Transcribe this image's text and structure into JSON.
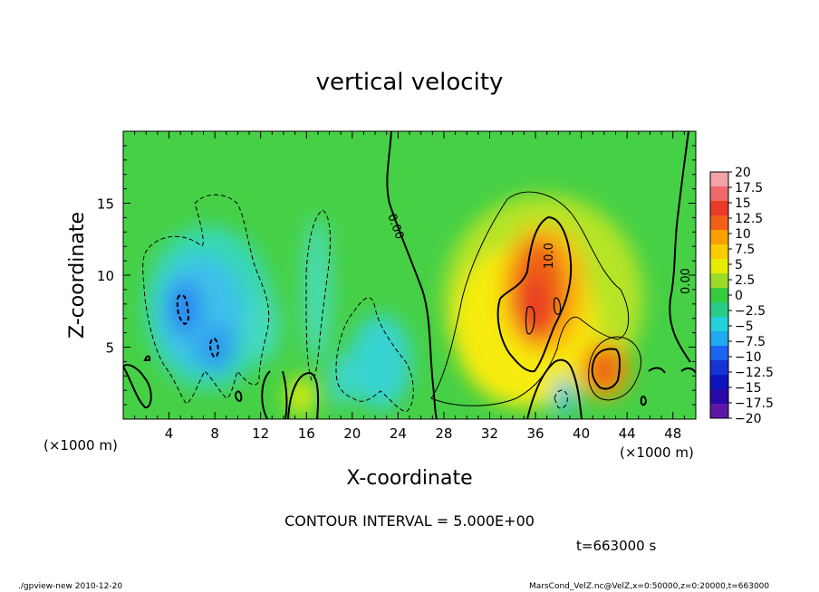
{
  "chart_data": {
    "type": "heatmap",
    "title": "vertical velocity",
    "xlabel": "X-coordinate",
    "ylabel": "Z-coordinate",
    "x_unit": "(×1000 m)",
    "y_unit": "(×1000 m)",
    "xlim": [
      0,
      50
    ],
    "ylim": [
      0,
      20
    ],
    "x_ticks": [
      4,
      8,
      12,
      16,
      20,
      24,
      28,
      32,
      36,
      40,
      44,
      48
    ],
    "y_ticks": [
      5,
      10,
      15
    ],
    "colorbar": {
      "levels": [
        20,
        17.5,
        15,
        12.5,
        10,
        7.5,
        5,
        2.5,
        0,
        -2.5,
        -5,
        -7.5,
        -10,
        -12.5,
        -15,
        -17.5,
        -20
      ],
      "labels": [
        "20",
        "17.5",
        "15",
        "12.5",
        "10",
        "7.5",
        "5",
        "2.5",
        "0",
        "−2.5",
        "−5",
        "−7.5",
        "−10",
        "−12.5",
        "−15",
        "−17.5",
        "−20"
      ],
      "colors": [
        "#f4a2a8",
        "#ef6a6a",
        "#ea3a2a",
        "#f06018",
        "#f8a000",
        "#fccc00",
        "#e6ec00",
        "#9cdc28",
        "#34cc3c",
        "#28cc88",
        "#22d0d8",
        "#20a8f0",
        "#1a64f0",
        "#1434d4",
        "#0c14c0",
        "#2808a8",
        "#5e18a8"
      ]
    },
    "contour_labels": [
      "0.00",
      "10.0",
      "0.00"
    ],
    "field_features": [
      {
        "kind": "updraft",
        "x": 36,
        "z": 9,
        "peak": 15
      },
      {
        "kind": "updraft",
        "x": 42,
        "z": 3.5,
        "peak": 12
      },
      {
        "kind": "updraft",
        "x": 15.5,
        "z": 1.5,
        "peak": 4
      },
      {
        "kind": "downdraft",
        "x": 5.5,
        "z": 8,
        "peak": -10
      },
      {
        "kind": "downdraft",
        "x": 8,
        "z": 5,
        "peak": -9
      },
      {
        "kind": "downdraft",
        "x": 23,
        "z": 4,
        "peak": -6
      },
      {
        "kind": "downdraft",
        "x": 38.5,
        "z": 1.5,
        "peak": -6
      }
    ],
    "contour_interval": "CONTOUR INTERVAL = 5.000E+00",
    "time": "t=663000  s"
  },
  "footer": {
    "left": "./gpview-new   2010-12-20",
    "right": "MarsCond_VelZ.nc@VelZ,x=0:50000,z=0:20000,t=663000"
  }
}
